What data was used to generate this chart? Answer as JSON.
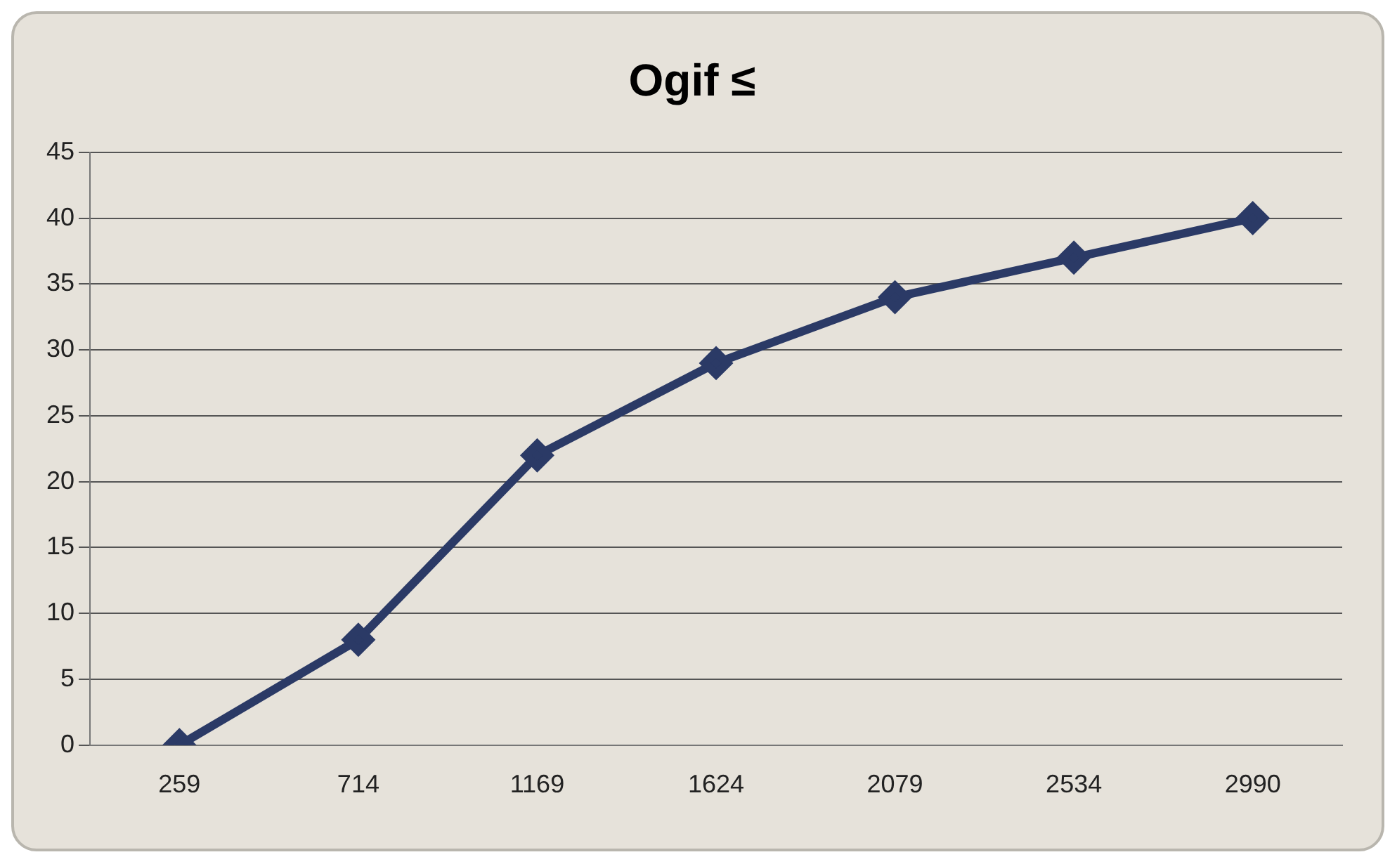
{
  "chart_data": {
    "type": "line",
    "title": "Ogif ≤",
    "categories": [
      "259",
      "714",
      "1169",
      "1624",
      "2079",
      "2534",
      "2990"
    ],
    "series": [
      {
        "color": "#2b3a66",
        "values": [
          0,
          8,
          22,
          29,
          34,
          37,
          40
        ]
      }
    ],
    "ylim": [
      0,
      45
    ],
    "yticks": [
      0,
      5,
      10,
      15,
      20,
      25,
      30,
      35,
      40,
      45
    ],
    "grid": "y",
    "legend": false,
    "marker": "diamond",
    "line_style": "solid"
  }
}
